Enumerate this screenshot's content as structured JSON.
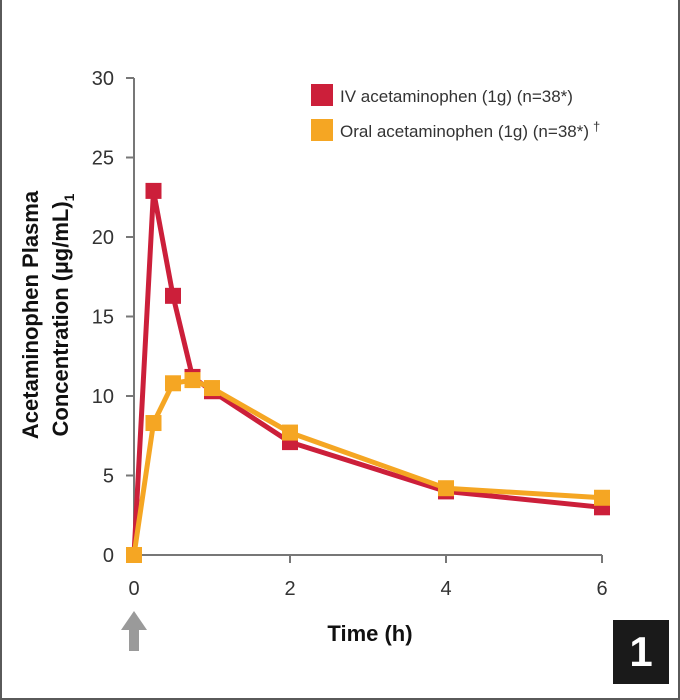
{
  "chart_data": {
    "type": "line",
    "xlabel": "Time (h)",
    "ylabel_line1": "Acetaminophen Plasma",
    "ylabel_line2": "Concentration (µg/mL)",
    "ylabel_subscript": "1",
    "xlim": [
      0,
      6
    ],
    "ylim": [
      0,
      30
    ],
    "x_ticks": [
      "0",
      "2",
      "4",
      "6"
    ],
    "y_ticks": [
      "0",
      "5",
      "10",
      "15",
      "20",
      "25",
      "30"
    ],
    "grid": false,
    "legend_position": "top-right",
    "dose_marker": "upward arrow at time 0",
    "series": [
      {
        "name": "IV acetaminophen (1g) (n=38*)",
        "color": "#cc1f3a",
        "x": [
          0,
          0.25,
          0.5,
          0.75,
          1,
          2,
          4,
          6
        ],
        "y": [
          0,
          22.9,
          16.3,
          11.2,
          10.3,
          7.1,
          4.0,
          3.0
        ]
      },
      {
        "name": "Oral acetaminophen (1g) (n=38*)",
        "name_suffix": "†",
        "color": "#f5a623",
        "x": [
          0,
          0.25,
          0.5,
          0.75,
          1,
          2,
          4,
          6
        ],
        "y": [
          0,
          8.3,
          10.8,
          11.0,
          10.5,
          7.7,
          4.2,
          3.6
        ]
      }
    ]
  },
  "figure_number": "1"
}
